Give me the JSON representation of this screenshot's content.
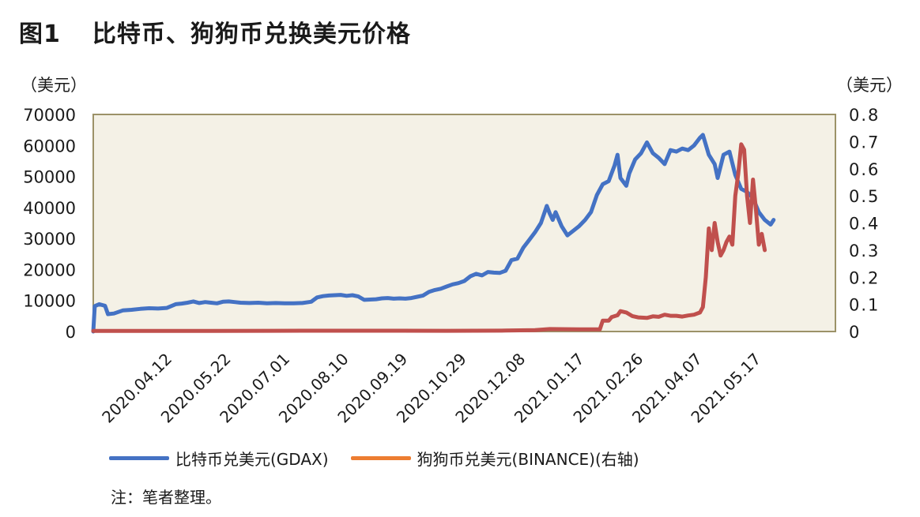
{
  "title": {
    "figure": "图1",
    "text": "比特币、狗狗币兑换美元价格"
  },
  "units": {
    "left": "（美元）",
    "right": "（美元）"
  },
  "note": "注：笔者整理。",
  "colors": {
    "btc": "#4472c4",
    "doge_line": "#c0504d",
    "doge_legend": "#ed7d31",
    "plot_bg": "#f4f1e6",
    "plot_border": "#9c9268"
  },
  "chart_data": {
    "type": "line",
    "title": "比特币、狗狗币兑换美元价格",
    "xlabel": "",
    "ylabel": "（美元）",
    "y2label": "（美元）",
    "ylim": [
      0,
      70000
    ],
    "y2lim": [
      0,
      0.8
    ],
    "yticks": [
      "70000",
      "60000",
      "50000",
      "40000",
      "30000",
      "20000",
      "10000",
      "0"
    ],
    "y2ticks": [
      "0.8",
      "0.7",
      "0.6",
      "0.5",
      "0.4",
      "0.3",
      "0.2",
      "0.1",
      "0"
    ],
    "x_range_days": [
      0,
      504
    ],
    "x_ticks": [
      {
        "day": 54,
        "label": "2020.04.12"
      },
      {
        "day": 94,
        "label": "2020.05.22"
      },
      {
        "day": 134,
        "label": "2020.07.01"
      },
      {
        "day": 174,
        "label": "2020.08.10"
      },
      {
        "day": 214,
        "label": "2020.09.19"
      },
      {
        "day": 254,
        "label": "2020.10.29"
      },
      {
        "day": 294,
        "label": "2020.12.08"
      },
      {
        "day": 334,
        "label": "2021.01.17"
      },
      {
        "day": 374,
        "label": "2021.02.26"
      },
      {
        "day": 414,
        "label": "2021.04.07"
      },
      {
        "day": 454,
        "label": "2021.05.17"
      }
    ],
    "series": [
      {
        "name": "比特币兑美元(GDAX)",
        "axis": "left",
        "points": [
          [
            0,
            0
          ],
          [
            1,
            8200
          ],
          [
            4,
            8800
          ],
          [
            8,
            8300
          ],
          [
            10,
            5600
          ],
          [
            14,
            5800
          ],
          [
            20,
            6800
          ],
          [
            26,
            7000
          ],
          [
            32,
            7300
          ],
          [
            38,
            7500
          ],
          [
            44,
            7400
          ],
          [
            50,
            7600
          ],
          [
            56,
            8800
          ],
          [
            60,
            9000
          ],
          [
            64,
            9300
          ],
          [
            68,
            9700
          ],
          [
            72,
            9200
          ],
          [
            76,
            9500
          ],
          [
            80,
            9300
          ],
          [
            84,
            9100
          ],
          [
            88,
            9600
          ],
          [
            92,
            9700
          ],
          [
            96,
            9500
          ],
          [
            100,
            9300
          ],
          [
            106,
            9200
          ],
          [
            112,
            9300
          ],
          [
            118,
            9100
          ],
          [
            124,
            9200
          ],
          [
            130,
            9100
          ],
          [
            136,
            9100
          ],
          [
            142,
            9200
          ],
          [
            148,
            9600
          ],
          [
            152,
            11000
          ],
          [
            156,
            11400
          ],
          [
            160,
            11600
          ],
          [
            164,
            11700
          ],
          [
            168,
            11800
          ],
          [
            172,
            11500
          ],
          [
            176,
            11700
          ],
          [
            180,
            11300
          ],
          [
            184,
            10200
          ],
          [
            188,
            10300
          ],
          [
            192,
            10400
          ],
          [
            196,
            10700
          ],
          [
            200,
            10800
          ],
          [
            204,
            10600
          ],
          [
            208,
            10700
          ],
          [
            212,
            10600
          ],
          [
            216,
            10800
          ],
          [
            220,
            11200
          ],
          [
            224,
            11600
          ],
          [
            228,
            12800
          ],
          [
            232,
            13400
          ],
          [
            236,
            13800
          ],
          [
            240,
            14500
          ],
          [
            244,
            15200
          ],
          [
            248,
            15600
          ],
          [
            252,
            16300
          ],
          [
            256,
            17800
          ],
          [
            260,
            18600
          ],
          [
            264,
            18100
          ],
          [
            268,
            19200
          ],
          [
            272,
            19000
          ],
          [
            276,
            18900
          ],
          [
            280,
            19600
          ],
          [
            284,
            23000
          ],
          [
            288,
            23500
          ],
          [
            292,
            27000
          ],
          [
            296,
            29500
          ],
          [
            300,
            32000
          ],
          [
            304,
            35000
          ],
          [
            308,
            40500
          ],
          [
            310,
            38000
          ],
          [
            312,
            36000
          ],
          [
            314,
            38500
          ],
          [
            318,
            34000
          ],
          [
            322,
            31000
          ],
          [
            326,
            32500
          ],
          [
            330,
            34000
          ],
          [
            334,
            36000
          ],
          [
            338,
            38500
          ],
          [
            342,
            44000
          ],
          [
            346,
            47500
          ],
          [
            350,
            48500
          ],
          [
            354,
            53500
          ],
          [
            356,
            57000
          ],
          [
            358,
            49500
          ],
          [
            362,
            47000
          ],
          [
            364,
            51000
          ],
          [
            368,
            55500
          ],
          [
            372,
            57500
          ],
          [
            376,
            61000
          ],
          [
            380,
            57500
          ],
          [
            384,
            56000
          ],
          [
            388,
            54000
          ],
          [
            392,
            58500
          ],
          [
            396,
            58000
          ],
          [
            400,
            59000
          ],
          [
            404,
            58500
          ],
          [
            408,
            60000
          ],
          [
            412,
            62500
          ],
          [
            414,
            63400
          ],
          [
            418,
            57000
          ],
          [
            422,
            54000
          ],
          [
            424,
            49500
          ],
          [
            428,
            57000
          ],
          [
            432,
            58000
          ],
          [
            436,
            50500
          ],
          [
            440,
            46000
          ],
          [
            444,
            45000
          ],
          [
            448,
            43000
          ],
          [
            452,
            38500
          ],
          [
            456,
            36000
          ],
          [
            460,
            34500
          ],
          [
            462,
            36000
          ]
        ]
      },
      {
        "name": "狗狗币兑美元(BINANCE)(右轴)",
        "axis": "right",
        "points": [
          [
            0,
            0.002
          ],
          [
            40,
            0.002
          ],
          [
            80,
            0.002
          ],
          [
            120,
            0.0025
          ],
          [
            160,
            0.003
          ],
          [
            200,
            0.003
          ],
          [
            240,
            0.0026
          ],
          [
            280,
            0.0035
          ],
          [
            300,
            0.005
          ],
          [
            310,
            0.009
          ],
          [
            330,
            0.008
          ],
          [
            344,
            0.008
          ],
          [
            346,
            0.04
          ],
          [
            350,
            0.04
          ],
          [
            352,
            0.053
          ],
          [
            356,
            0.06
          ],
          [
            358,
            0.075
          ],
          [
            362,
            0.07
          ],
          [
            366,
            0.057
          ],
          [
            370,
            0.052
          ],
          [
            376,
            0.05
          ],
          [
            380,
            0.056
          ],
          [
            384,
            0.054
          ],
          [
            388,
            0.062
          ],
          [
            392,
            0.058
          ],
          [
            396,
            0.058
          ],
          [
            400,
            0.055
          ],
          [
            404,
            0.059
          ],
          [
            408,
            0.062
          ],
          [
            412,
            0.07
          ],
          [
            414,
            0.09
          ],
          [
            416,
            0.2
          ],
          [
            418,
            0.38
          ],
          [
            420,
            0.3
          ],
          [
            422,
            0.4
          ],
          [
            424,
            0.33
          ],
          [
            426,
            0.28
          ],
          [
            428,
            0.3
          ],
          [
            430,
            0.33
          ],
          [
            432,
            0.35
          ],
          [
            434,
            0.32
          ],
          [
            436,
            0.5
          ],
          [
            438,
            0.58
          ],
          [
            440,
            0.69
          ],
          [
            442,
            0.67
          ],
          [
            444,
            0.5
          ],
          [
            446,
            0.4
          ],
          [
            448,
            0.56
          ],
          [
            450,
            0.45
          ],
          [
            452,
            0.32
          ],
          [
            454,
            0.36
          ],
          [
            456,
            0.3
          ]
        ]
      }
    ]
  },
  "legend": [
    {
      "label": "比特币兑美元(GDAX)",
      "color": "#4472c4"
    },
    {
      "label": "狗狗币兑美元(BINANCE)(右轴)",
      "color": "#ed7d31"
    }
  ]
}
